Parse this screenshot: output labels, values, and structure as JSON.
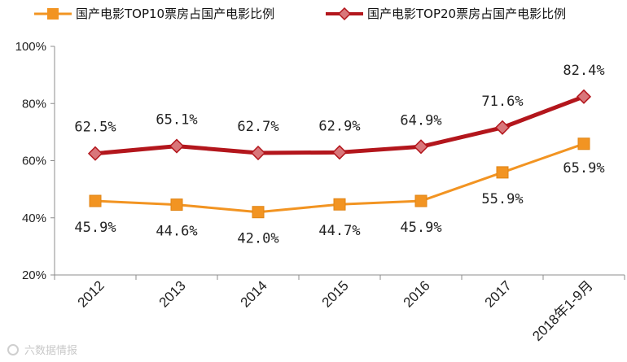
{
  "chart_data": {
    "type": "line",
    "categories": [
      "2012",
      "2013",
      "2014",
      "2015",
      "2016",
      "2017",
      "2018年1-9月"
    ],
    "series": [
      {
        "name": "国产电影TOP10票房占国产电影比例",
        "color": "#f29422",
        "marker": "square",
        "values": [
          45.9,
          44.6,
          42.0,
          44.7,
          45.9,
          55.9,
          65.9
        ],
        "labels": [
          "45.9%",
          "44.6%",
          "42.0%",
          "44.7%",
          "45.9%",
          "55.9%",
          "65.9%"
        ]
      },
      {
        "name": "国产电影TOP20票房占国产电影比例",
        "color": "#b3161c",
        "marker_color": "#d9767a",
        "marker": "diamond",
        "values": [
          62.5,
          65.1,
          62.7,
          62.9,
          64.9,
          71.6,
          82.4
        ],
        "labels": [
          "62.5%",
          "65.1%",
          "62.7%",
          "62.9%",
          "64.9%",
          "71.6%",
          "82.4%"
        ]
      }
    ],
    "yticks": [
      "20%",
      "40%",
      "60%",
      "80%",
      "100%"
    ],
    "ylim": [
      20,
      100
    ],
    "legend_position": "top",
    "grid": false
  },
  "watermark": "六数据情报"
}
